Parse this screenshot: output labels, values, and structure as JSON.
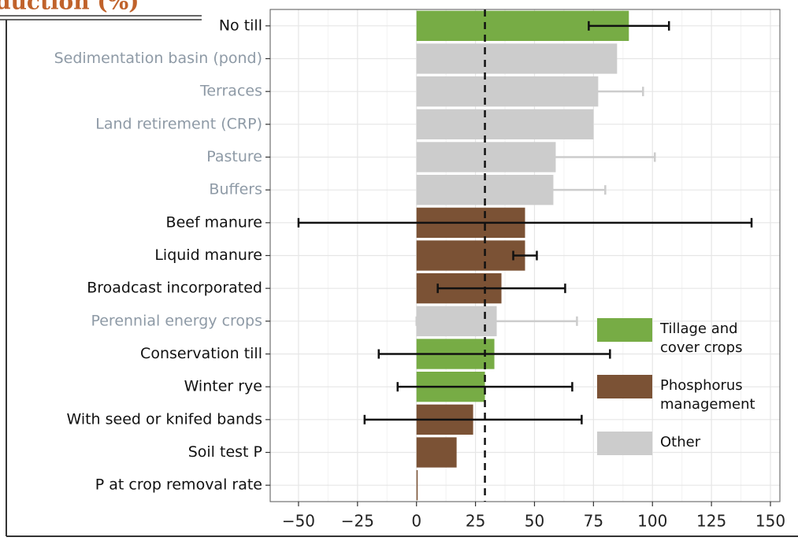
{
  "chart_data": {
    "type": "bar",
    "orientation": "horizontal",
    "title": "duction (%)",
    "categories": [
      "No till",
      "Sedimentation basin (pond)",
      "Terraces",
      "Land retirement (CRP)",
      "Pasture",
      "Buffers",
      "Beef manure",
      "Liquid manure",
      "Broadcast incorporated",
      "Perennial energy crops",
      "Conservation till",
      "Winter rye",
      "With seed or knifed bands",
      "Soil test P",
      "P at crop removal rate"
    ],
    "values": [
      90,
      85,
      77,
      75,
      59,
      58,
      46,
      46,
      36,
      34,
      33,
      29,
      24,
      17,
      0.5
    ],
    "errors": [
      17,
      null,
      19,
      null,
      42,
      22,
      96,
      5,
      27,
      34,
      49,
      37,
      46,
      null,
      null
    ],
    "colors": [
      "#77ac45",
      "#cccccc",
      "#cccccc",
      "#cccccc",
      "#cccccc",
      "#cccccc",
      "#7b5235",
      "#7b5235",
      "#7b5235",
      "#cccccc",
      "#77ac45",
      "#77ac45",
      "#7b5235",
      "#7b5235",
      "#7b5235"
    ],
    "label_colors": [
      "#111111",
      "#8e9aa6",
      "#8e9aa6",
      "#8e9aa6",
      "#8e9aa6",
      "#8e9aa6",
      "#111111",
      "#111111",
      "#111111",
      "#8e9aa6",
      "#111111",
      "#111111",
      "#111111",
      "#111111",
      "#111111"
    ],
    "error_colors": [
      "#111111",
      "#cccccc",
      "#cccccc",
      "#cccccc",
      "#cccccc",
      "#cccccc",
      "#111111",
      "#111111",
      "#111111",
      "#cccccc",
      "#111111",
      "#111111",
      "#111111",
      "#111111",
      "#111111"
    ],
    "legend": [
      {
        "name": "Tillage and cover crops",
        "color": "#77ac45"
      },
      {
        "name": "Phosphorus management",
        "color": "#7b5235"
      },
      {
        "name": "Other",
        "color": "#cccccc"
      }
    ],
    "reference_line": 29,
    "xlim": [
      -62,
      154
    ],
    "xticks": [
      {
        "value": -50,
        "label": "−50"
      },
      {
        "value": -25,
        "label": "−25"
      },
      0,
      25,
      50,
      75,
      100,
      125,
      150
    ],
    "grid": true
  }
}
